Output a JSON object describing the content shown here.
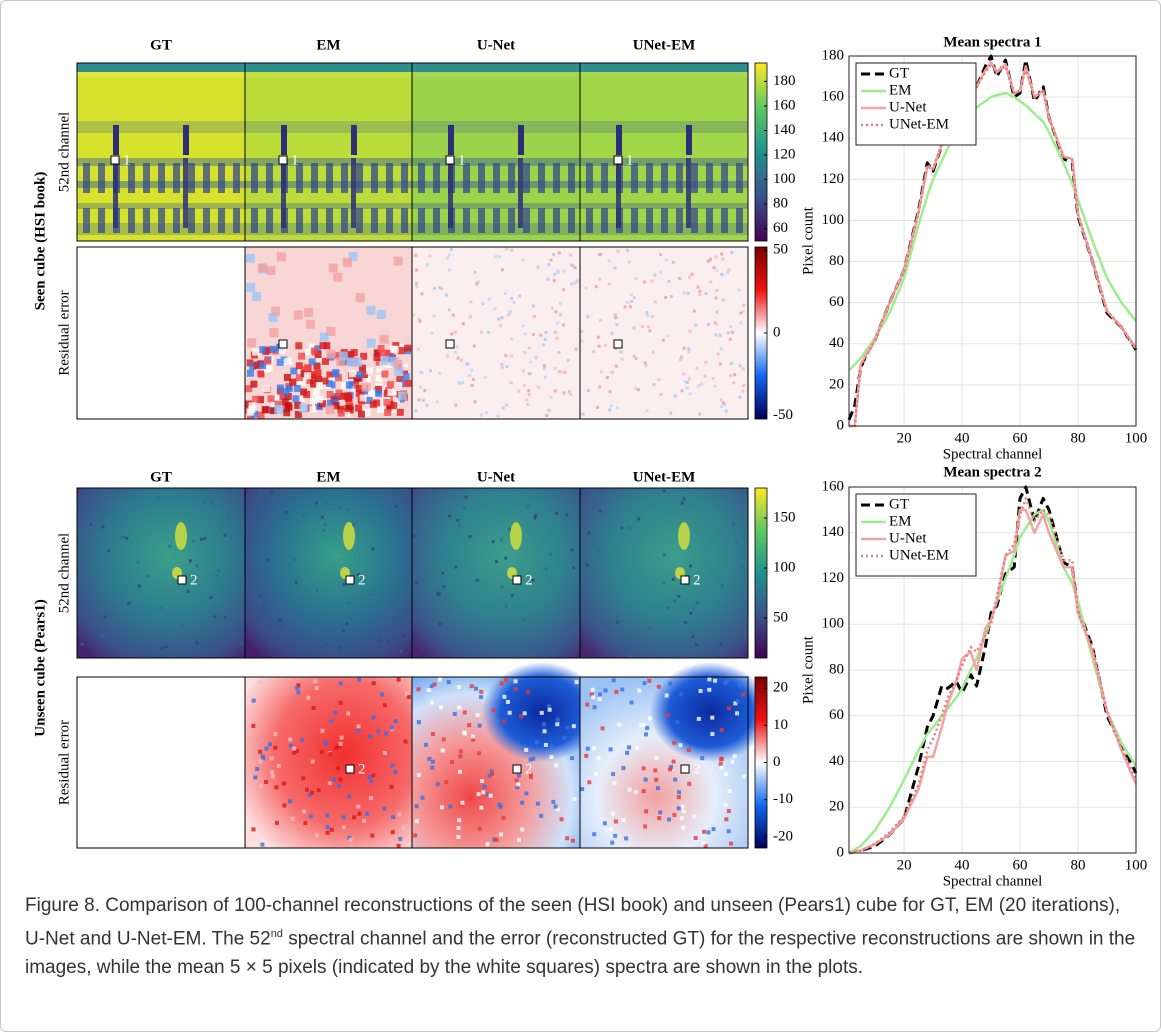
{
  "blocks": [
    {
      "cube_label": "Seen cube (HSI book)",
      "row_labels": [
        "52nd channel",
        "Residual error"
      ],
      "panel_titles": [
        "GT",
        "EM",
        "U-Net",
        "UNet-EM"
      ],
      "marker": "1",
      "colorbars": [
        {
          "lim": [
            50,
            195
          ],
          "ticks": [
            60,
            80,
            100,
            120,
            140,
            160,
            180
          ]
        },
        {
          "lim": [
            -52,
            52
          ],
          "ticks": [
            50,
            0,
            -50
          ]
        }
      ]
    },
    {
      "cube_label": "Unseen cube (Pears1)",
      "row_labels": [
        "52nd channel",
        "Residual error"
      ],
      "panel_titles": [
        "GT",
        "EM",
        "U-Net",
        "UNet-EM"
      ],
      "marker": "2",
      "colorbars": [
        {
          "lim": [
            10,
            180
          ],
          "ticks": [
            50,
            100,
            150
          ]
        },
        {
          "lim": [
            -23,
            23
          ],
          "ticks": [
            20,
            10,
            0,
            -10,
            -20
          ]
        }
      ]
    }
  ],
  "chart_data": [
    {
      "type": "line",
      "title": "Mean spectra 1",
      "xlabel": "Spectral channel",
      "ylabel": "Pixel count",
      "x": [
        1,
        3,
        5,
        7,
        10,
        15,
        20,
        25,
        28,
        30,
        35,
        40,
        45,
        48,
        50,
        52,
        55,
        58,
        60,
        62,
        65,
        68,
        70,
        75,
        78,
        80,
        85,
        90,
        95,
        100
      ],
      "xlim": [
        1,
        100
      ],
      "ylim": [
        0,
        180
      ],
      "xticks": [
        20,
        40,
        60,
        80,
        100
      ],
      "yticks": [
        0,
        20,
        40,
        60,
        80,
        100,
        120,
        140,
        160,
        180
      ],
      "grid": true,
      "legend": "upper left",
      "series": [
        {
          "name": "GT",
          "color": "#000000",
          "linestyle": "dashed",
          "values": [
            3,
            10,
            28,
            35,
            42,
            60,
            76,
            105,
            128,
            124,
            145,
            158,
            165,
            175,
            180,
            170,
            178,
            160,
            162,
            178,
            158,
            165,
            150,
            130,
            128,
            102,
            80,
            55,
            48,
            37
          ]
        },
        {
          "name": "EM",
          "color": "#9ded8f",
          "linestyle": "solid",
          "values": [
            27,
            30,
            33,
            37,
            43,
            55,
            72,
            98,
            112,
            120,
            135,
            148,
            155,
            158,
            160,
            161,
            162,
            160,
            158,
            156,
            152,
            148,
            143,
            128,
            118,
            110,
            90,
            72,
            60,
            51
          ]
        },
        {
          "name": "U-Net",
          "color": "#f4a3a3",
          "linestyle": "solid",
          "values": [
            0,
            0,
            30,
            35,
            42,
            60,
            76,
            104,
            126,
            125,
            145,
            157,
            165,
            173,
            177,
            172,
            176,
            162,
            163,
            175,
            160,
            163,
            150,
            131,
            130,
            103,
            80,
            56,
            48,
            38
          ]
        },
        {
          "name": "UNet-EM",
          "color": "#e67c7c",
          "linestyle": "dotted",
          "values": [
            0,
            0,
            28,
            34,
            42,
            60,
            75,
            104,
            127,
            125,
            146,
            158,
            165,
            172,
            176,
            172,
            175,
            162,
            163,
            174,
            160,
            163,
            150,
            131,
            130,
            103,
            81,
            56,
            48,
            37
          ]
        }
      ]
    },
    {
      "type": "line",
      "title": "Mean spectra 2",
      "xlabel": "Spectral channel",
      "ylabel": "Pixel count",
      "x": [
        1,
        5,
        10,
        15,
        20,
        25,
        28,
        30,
        33,
        35,
        38,
        40,
        43,
        45,
        48,
        50,
        52,
        55,
        58,
        60,
        62,
        65,
        68,
        70,
        75,
        78,
        80,
        85,
        90,
        95,
        100
      ],
      "xlim": [
        1,
        100
      ],
      "ylim": [
        0,
        160
      ],
      "xticks": [
        20,
        40,
        60,
        80,
        100
      ],
      "yticks": [
        0,
        20,
        40,
        60,
        80,
        100,
        120,
        140,
        160
      ],
      "grid": true,
      "legend": "upper left",
      "series": [
        {
          "name": "GT",
          "color": "#000000",
          "linestyle": "dashed",
          "values": [
            0,
            1,
            3,
            8,
            15,
            38,
            55,
            60,
            73,
            72,
            75,
            70,
            78,
            73,
            90,
            105,
            108,
            122,
            125,
            155,
            160,
            145,
            155,
            150,
            127,
            125,
            107,
            90,
            60,
            47,
            35
          ]
        },
        {
          "name": "EM",
          "color": "#9ded8f",
          "linestyle": "solid",
          "values": [
            0,
            3,
            10,
            20,
            32,
            45,
            52,
            55,
            60,
            63,
            68,
            72,
            80,
            85,
            95,
            102,
            110,
            120,
            130,
            138,
            142,
            148,
            150,
            145,
            125,
            118,
            110,
            85,
            62,
            48,
            38
          ]
        },
        {
          "name": "U-Net",
          "color": "#f4a3a3",
          "linestyle": "solid",
          "values": [
            0,
            1,
            4,
            8,
            15,
            28,
            42,
            42,
            55,
            65,
            75,
            85,
            88,
            80,
            98,
            102,
            110,
            130,
            132,
            150,
            150,
            140,
            148,
            140,
            125,
            125,
            105,
            88,
            62,
            45,
            30
          ]
        },
        {
          "name": "UNet-EM",
          "color": "#e67c7c",
          "linestyle": "dotted",
          "values": [
            0,
            1,
            4,
            9,
            16,
            30,
            45,
            50,
            60,
            68,
            75,
            82,
            90,
            88,
            95,
            100,
            112,
            130,
            135,
            148,
            155,
            145,
            150,
            148,
            128,
            128,
            105,
            90,
            62,
            46,
            32
          ]
        }
      ]
    }
  ],
  "caption": {
    "before": "Figure 8. Comparison of 100-channel reconstructions of the seen (HSI book) and unseen (Pears1) cube for GT, EM (20 iterations), U-Net and U-Net-EM. The 52",
    "sup": "nd",
    "after": " spectral channel and the error (reconstructed GT) for the respective reconstructions are shown in the images, while the mean 5 × 5 pixels (indicated by the white squares) spectra are shown in the plots."
  }
}
